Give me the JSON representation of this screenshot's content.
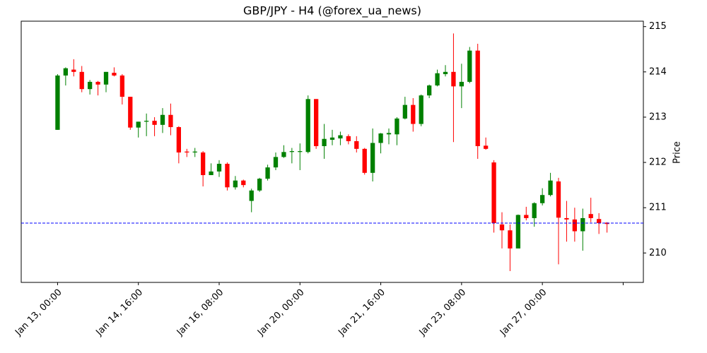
{
  "chart_data": {
    "type": "candlestick",
    "title": "GBP/JPY - H4 (@forex_ua_news)",
    "y_label": "Price",
    "up_color": "#008000",
    "down_color": "#ff0000",
    "open": [
      212.72,
      213.92,
      214.05,
      214.0,
      213.62,
      213.78,
      213.72,
      213.98,
      213.92,
      213.45,
      212.77,
      212.9,
      212.92,
      212.83,
      213.05,
      212.78,
      212.24,
      212.22,
      212.22,
      211.72,
      211.8,
      211.97,
      211.45,
      211.6,
      211.15,
      211.38,
      211.64,
      211.89,
      212.12,
      212.23,
      212.23,
      212.23,
      213.4,
      212.36,
      212.5,
      212.53,
      212.58,
      212.47,
      212.3,
      211.77,
      212.43,
      212.62,
      212.62,
      212.97,
      213.27,
      212.85,
      213.48,
      213.7,
      213.95,
      214.0,
      213.68,
      213.78,
      214.47,
      212.37,
      212.0,
      210.63,
      210.5,
      210.1,
      210.84,
      210.77,
      211.1,
      211.28,
      211.58,
      210.77,
      210.74,
      210.48,
      210.86,
      210.75,
      210.67
    ],
    "high": [
      213.95,
      214.1,
      214.28,
      214.13,
      213.82,
      213.8,
      214.0,
      214.1,
      213.95,
      213.45,
      212.9,
      213.08,
      213.0,
      213.2,
      213.3,
      212.8,
      212.3,
      212.32,
      212.25,
      211.98,
      212.05,
      212.0,
      211.7,
      211.62,
      211.42,
      211.66,
      211.95,
      212.22,
      212.38,
      212.32,
      212.42,
      213.48,
      213.4,
      212.85,
      212.72,
      212.68,
      212.62,
      212.58,
      212.32,
      212.75,
      212.65,
      212.75,
      213.0,
      213.45,
      213.42,
      213.5,
      213.72,
      214.05,
      214.15,
      214.85,
      214.18,
      214.55,
      214.62,
      212.55,
      212.05,
      210.9,
      210.63,
      210.85,
      211.02,
      211.12,
      211.43,
      211.77,
      211.66,
      211.15,
      211.0,
      210.98,
      211.22,
      210.88,
      210.68
    ],
    "low": [
      212.72,
      213.7,
      213.9,
      213.55,
      213.5,
      213.48,
      213.55,
      213.9,
      213.28,
      212.72,
      212.55,
      212.58,
      212.58,
      212.65,
      212.6,
      211.98,
      212.12,
      212.12,
      211.47,
      211.72,
      211.68,
      211.38,
      211.4,
      211.45,
      210.9,
      211.35,
      211.6,
      211.83,
      212.1,
      211.98,
      211.83,
      212.2,
      212.3,
      212.08,
      212.38,
      212.38,
      212.4,
      212.22,
      211.73,
      211.58,
      212.2,
      212.4,
      212.38,
      212.95,
      212.68,
      212.8,
      213.42,
      213.68,
      213.9,
      212.45,
      213.2,
      213.75,
      212.08,
      212.28,
      210.45,
      210.1,
      209.6,
      210.1,
      210.72,
      210.58,
      211.05,
      211.25,
      209.75,
      210.25,
      210.25,
      210.05,
      210.68,
      210.42,
      210.45
    ],
    "close": [
      213.92,
      214.08,
      214.0,
      213.62,
      213.78,
      213.72,
      214.0,
      213.92,
      213.45,
      212.77,
      212.9,
      212.92,
      212.83,
      213.05,
      212.78,
      212.22,
      212.22,
      212.24,
      211.72,
      211.8,
      211.97,
      211.45,
      211.6,
      211.5,
      211.38,
      211.64,
      211.89,
      212.12,
      212.23,
      212.25,
      212.25,
      213.4,
      212.36,
      212.52,
      212.55,
      212.6,
      212.47,
      212.3,
      211.77,
      212.43,
      212.64,
      212.65,
      212.97,
      213.27,
      212.85,
      213.48,
      213.7,
      213.97,
      214.0,
      213.68,
      213.78,
      214.47,
      212.36,
      212.3,
      210.66,
      210.5,
      210.1,
      210.84,
      210.77,
      211.1,
      211.28,
      211.6,
      210.78,
      210.74,
      210.48,
      210.77,
      210.77,
      210.66,
      210.64
    ],
    "hline": {
      "value": 210.66,
      "color": "#0000ff",
      "style": "dashed"
    },
    "xlim": [
      -4.5,
      72.5
    ],
    "ylim": [
      209.35,
      215.12
    ],
    "xticks": [
      {
        "value": 0,
        "label": "Jan 13, 00:00"
      },
      {
        "value": 10,
        "label": "Jan 14, 16:00"
      },
      {
        "value": 20,
        "label": "Jan 16, 08:00"
      },
      {
        "value": 30,
        "label": "Jan 20, 00:00"
      },
      {
        "value": 40,
        "label": "Jan 21, 16:00"
      },
      {
        "value": 50,
        "label": "Jan 23, 08:00"
      },
      {
        "value": 60,
        "label": "Jan 27, 00:00"
      },
      {
        "value": 70,
        "label": null
      }
    ],
    "yticks": [
      210,
      211,
      212,
      213,
      214,
      215
    ]
  }
}
